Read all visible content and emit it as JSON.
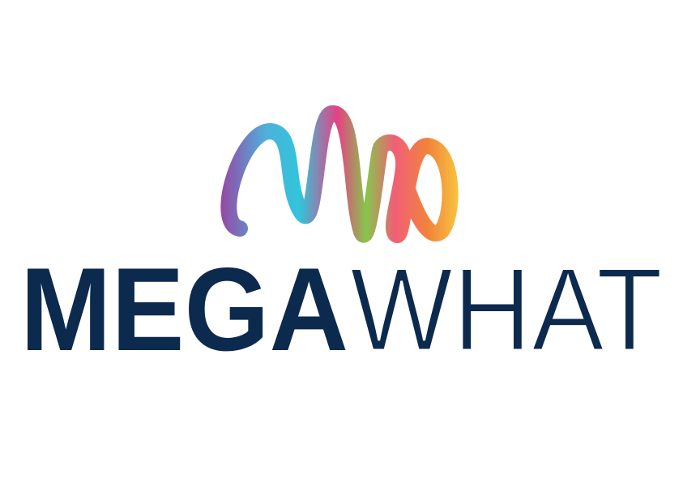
{
  "logo": {
    "bold": "MEGA",
    "light": "WHAT"
  }
}
